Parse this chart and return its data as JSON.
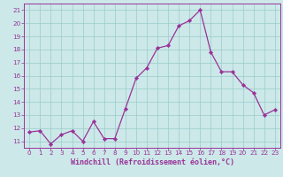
{
  "x": [
    0,
    1,
    2,
    3,
    4,
    5,
    6,
    7,
    8,
    9,
    10,
    11,
    12,
    13,
    14,
    15,
    16,
    17,
    18,
    19,
    20,
    21,
    22,
    23
  ],
  "y": [
    11.7,
    11.8,
    10.8,
    11.5,
    11.8,
    11.0,
    12.5,
    11.2,
    11.2,
    13.5,
    15.8,
    16.6,
    18.1,
    18.3,
    19.8,
    20.2,
    21.0,
    17.8,
    16.3,
    16.3,
    15.3,
    14.7,
    13.0,
    13.4
  ],
  "line_color": "#993399",
  "marker_color": "#993399",
  "bg_color": "#cce8e8",
  "grid_color": "#99cccc",
  "xlabel": "Windchill (Refroidissement éolien,°C)",
  "xlim": [
    -0.5,
    23.5
  ],
  "ylim": [
    10.5,
    21.5
  ],
  "yticks": [
    11,
    12,
    13,
    14,
    15,
    16,
    17,
    18,
    19,
    20,
    21
  ],
  "xticks": [
    0,
    1,
    2,
    3,
    4,
    5,
    6,
    7,
    8,
    9,
    10,
    11,
    12,
    13,
    14,
    15,
    16,
    17,
    18,
    19,
    20,
    21,
    22,
    23
  ],
  "tick_fontsize": 5.2,
  "xlabel_fontsize": 6.0,
  "line_width": 0.9,
  "marker_size": 2.2
}
